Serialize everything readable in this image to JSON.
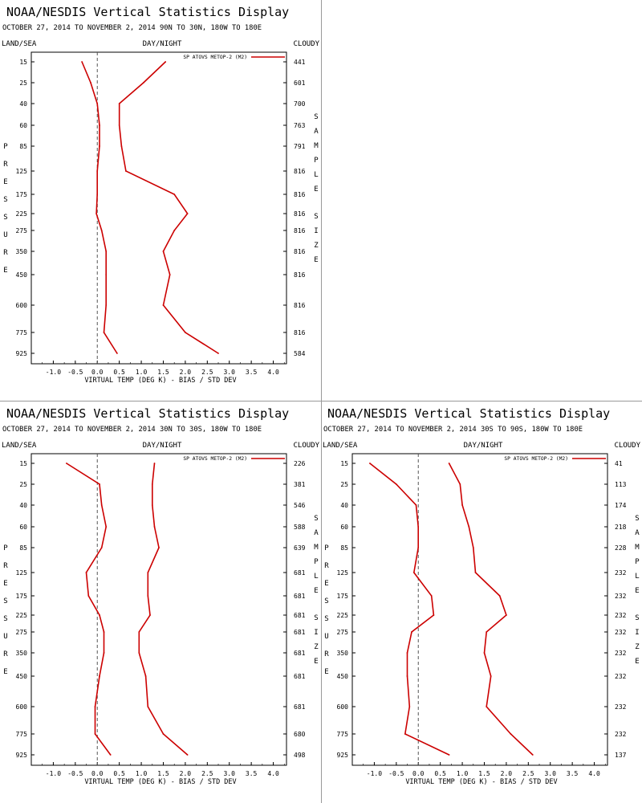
{
  "panels": [
    {
      "title": "NOAA/NESDIS Vertical Statistics Display",
      "subtitle": "OCTOBER 27, 2014 TO NOVEMBER 2, 2014  90N TO 30N, 180W TO 180E",
      "land_sea": "LAND/SEA",
      "day_night": "DAY/NIGHT",
      "cloudy": "CLOUDY",
      "left_axis_title": "PRESSURE",
      "right_axis_title": "SAMPLE SIZE",
      "xlabel": "VIRTUAL TEMP (DEG K) - BIAS / STD DEV",
      "legend": "SP ATOVS METOP-2 (M2)"
    },
    null,
    {
      "title": "NOAA/NESDIS Vertical Statistics Display",
      "subtitle": "OCTOBER 27, 2014 TO NOVEMBER 2, 2014  30N TO 30S, 180W TO 180E",
      "land_sea": "LAND/SEA",
      "day_night": "DAY/NIGHT",
      "cloudy": "CLOUDY",
      "left_axis_title": "PRESSURE",
      "right_axis_title": "SAMPLE SIZE",
      "xlabel": "VIRTUAL TEMP (DEG K) - BIAS / STD DEV",
      "legend": "SP ATOVS METOP-2 (M2)"
    },
    {
      "title": "NOAA/NESDIS Vertical Statistics Display",
      "subtitle": "OCTOBER 27, 2014 TO NOVEMBER 2, 2014  30S TO 90S, 180W TO 180E",
      "land_sea": "LAND/SEA",
      "day_night": "DAY/NIGHT",
      "cloudy": "CLOUDY",
      "left_axis_title": "PRESSURE",
      "right_axis_title": "SAMPLE SIZE",
      "xlabel": "VIRTUAL TEMP (DEG K) - BIAS / STD DEV",
      "legend": "SP ATOVS METOP-2 (M2)"
    }
  ],
  "chart_data": [
    {
      "type": "line",
      "region": "90N TO 30N",
      "pressure_levels": [
        "15",
        "25",
        "40",
        "60",
        "85",
        "125",
        "175",
        "225",
        "275",
        "350",
        "450",
        "600",
        "775",
        "925"
      ],
      "x_ticks": [
        "-1.0",
        "-0.5",
        "0.0",
        "0.5",
        "1.0",
        "1.5",
        "2.0",
        "2.5",
        "3.0",
        "3.5",
        "4.0"
      ],
      "xlim": [
        -1.5,
        4.3
      ],
      "series": [
        {
          "name": "SP ATOVS METOP-2 (M2)",
          "kind": "bias",
          "values": [
            -0.35,
            -0.15,
            0.0,
            0.05,
            0.05,
            0.0,
            0.0,
            -0.02,
            0.1,
            0.2,
            0.2,
            0.2,
            0.15,
            0.45
          ],
          "color": "#cc0000"
        },
        {
          "kind": "std_dev",
          "values": [
            1.55,
            1.05,
            0.5,
            0.5,
            0.55,
            0.65,
            1.75,
            2.05,
            1.75,
            1.5,
            1.65,
            1.5,
            2.0,
            2.75
          ],
          "color": "#cc0000"
        }
      ],
      "sample_size": [
        "441",
        "601",
        "700",
        "763",
        "791",
        "816",
        "816",
        "816",
        "816",
        "816",
        "816",
        "816",
        "816",
        "584"
      ]
    },
    {
      "type": "line",
      "region": "30N TO 30S",
      "pressure_levels": [
        "15",
        "25",
        "40",
        "60",
        "85",
        "125",
        "175",
        "225",
        "275",
        "350",
        "450",
        "600",
        "775",
        "925"
      ],
      "x_ticks": [
        "-1.0",
        "-0.5",
        "0.0",
        "0.5",
        "1.0",
        "1.5",
        "2.0",
        "2.5",
        "3.0",
        "3.5",
        "4.0"
      ],
      "xlim": [
        -1.5,
        4.3
      ],
      "series": [
        {
          "name": "SP ATOVS METOP-2 (M2)",
          "kind": "bias",
          "values": [
            -0.7,
            0.05,
            0.1,
            0.2,
            0.1,
            -0.25,
            -0.2,
            0.05,
            0.15,
            0.15,
            0.05,
            -0.05,
            -0.05,
            0.3
          ],
          "color": "#cc0000"
        },
        {
          "kind": "std_dev",
          "values": [
            1.3,
            1.25,
            1.25,
            1.3,
            1.4,
            1.15,
            1.15,
            1.2,
            0.95,
            0.95,
            1.1,
            1.15,
            1.5,
            2.05
          ],
          "color": "#cc0000"
        }
      ],
      "sample_size": [
        "226",
        "381",
        "546",
        "588",
        "639",
        "681",
        "681",
        "681",
        "681",
        "681",
        "681",
        "681",
        "680",
        "498"
      ]
    },
    {
      "type": "line",
      "region": "30S TO 90S",
      "pressure_levels": [
        "15",
        "25",
        "40",
        "60",
        "85",
        "125",
        "175",
        "225",
        "275",
        "350",
        "450",
        "600",
        "775",
        "925"
      ],
      "x_ticks": [
        "-1.0",
        "-0.5",
        "0.0",
        "0.5",
        "1.0",
        "1.5",
        "2.0",
        "2.5",
        "3.0",
        "3.5",
        "4.0"
      ],
      "xlim": [
        -1.5,
        4.3
      ],
      "series": [
        {
          "name": "SP ATOVS METOP-2 (M2)",
          "kind": "bias",
          "values": [
            -1.1,
            -0.5,
            -0.05,
            0.0,
            0.0,
            -0.1,
            0.3,
            0.35,
            -0.15,
            -0.25,
            -0.25,
            -0.2,
            -0.3,
            0.7
          ],
          "color": "#cc0000"
        },
        {
          "kind": "std_dev",
          "values": [
            0.7,
            0.95,
            1.0,
            1.15,
            1.25,
            1.3,
            1.85,
            2.0,
            1.55,
            1.5,
            1.65,
            1.55,
            2.1,
            2.6
          ],
          "color": "#cc0000"
        }
      ],
      "sample_size": [
        "41",
        "113",
        "174",
        "218",
        "228",
        "232",
        "232",
        "232",
        "232",
        "232",
        "232",
        "232",
        "232",
        "137"
      ]
    }
  ]
}
